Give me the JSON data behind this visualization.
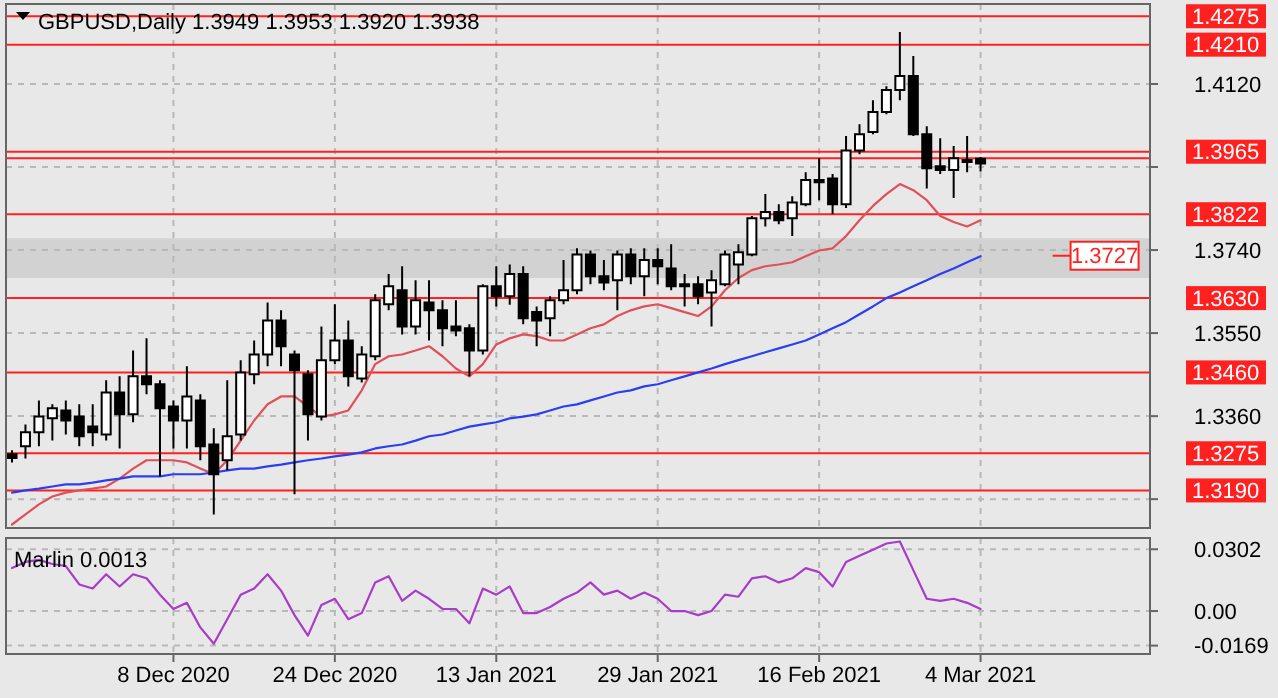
{
  "chart_data": [
    {
      "type": "candlestick",
      "title": "GBPUSD,Daily 1.3949 1.3953 1.3920 1.3938",
      "categories": [
        null,
        null,
        null,
        null,
        null,
        null,
        null,
        null,
        null,
        null,
        null,
        null,
        null,
        null,
        null,
        null,
        null,
        null,
        null,
        null,
        null,
        null,
        null,
        null,
        null,
        null,
        null,
        null,
        null,
        null,
        null,
        null,
        null,
        null,
        null,
        null,
        null,
        null,
        null,
        null,
        null,
        null,
        null,
        null,
        null,
        null,
        null,
        null,
        null,
        null,
        null,
        null,
        null,
        null,
        null,
        null,
        null,
        null,
        null,
        null,
        null,
        null,
        null,
        null,
        null,
        null,
        null,
        null,
        null,
        null,
        null,
        null,
        null,
        null,
        null,
        null,
        null,
        null,
        null,
        null,
        null,
        null,
        null,
        null,
        null
      ],
      "ohlc": [
        [
          1.3273,
          1.3282,
          1.3254,
          1.3264
        ],
        [
          1.3291,
          1.3341,
          1.3263,
          1.3323
        ],
        [
          1.3323,
          1.3396,
          1.3291,
          1.3359
        ],
        [
          1.3355,
          1.3387,
          1.3304,
          1.3378
        ],
        [
          1.3373,
          1.3396,
          1.3318,
          1.335
        ],
        [
          1.3359,
          1.3387,
          1.3291,
          1.3314
        ],
        [
          1.3336,
          1.3387,
          1.3291,
          1.3323
        ],
        [
          1.3318,
          1.3442,
          1.3304,
          1.3414
        ],
        [
          1.3414,
          1.3451,
          1.3286,
          1.3364
        ],
        [
          1.3364,
          1.351,
          1.3346,
          1.3451
        ],
        [
          1.3451,
          1.3538,
          1.341,
          1.3433
        ],
        [
          1.3433,
          1.3442,
          1.3222,
          1.3378
        ],
        [
          1.3382,
          1.3396,
          1.3286,
          1.335
        ],
        [
          1.335,
          1.3474,
          1.3286,
          1.3405
        ],
        [
          1.3396,
          1.341,
          1.3259,
          1.3291
        ],
        [
          1.3295,
          1.3332,
          1.3135,
          1.3227
        ],
        [
          1.3259,
          1.3442,
          1.3236,
          1.3314
        ],
        [
          1.3318,
          1.3488,
          1.3304,
          1.346
        ],
        [
          1.3456,
          1.3533,
          1.3433,
          1.3501
        ],
        [
          1.3501,
          1.362,
          1.3474,
          1.3579
        ],
        [
          1.3579,
          1.3602,
          1.3474,
          1.352
        ],
        [
          1.3501,
          1.351,
          1.3181,
          1.3465
        ],
        [
          1.3456,
          1.3465,
          1.3304,
          1.3364
        ],
        [
          1.3359,
          1.3565,
          1.335,
          1.3488
        ],
        [
          1.3488,
          1.3616,
          1.3479,
          1.3533
        ],
        [
          1.3533,
          1.3579,
          1.3428,
          1.3451
        ],
        [
          1.3446,
          1.352,
          1.3437,
          1.3501
        ],
        [
          1.3497,
          1.3639,
          1.3488,
          1.3625
        ],
        [
          1.3616,
          1.3685,
          1.3602,
          1.3657
        ],
        [
          1.3648,
          1.3703,
          1.3547,
          1.3565
        ],
        [
          1.3565,
          1.3671,
          1.3547,
          1.3625
        ],
        [
          1.362,
          1.3671,
          1.3533,
          1.3602
        ],
        [
          1.3602,
          1.3625,
          1.352,
          1.3561
        ],
        [
          1.3565,
          1.3625,
          1.3543,
          1.3556
        ],
        [
          1.3561,
          1.357,
          1.3451,
          1.351
        ],
        [
          1.351,
          1.3662,
          1.3501,
          1.3657
        ],
        [
          1.3657,
          1.3703,
          1.3611,
          1.3634
        ],
        [
          1.3634,
          1.3707,
          1.3615,
          1.3685
        ],
        [
          1.3685,
          1.3703,
          1.357,
          1.3584
        ],
        [
          1.3598,
          1.3611,
          1.352,
          1.3579
        ],
        [
          1.3584,
          1.3634,
          1.3543,
          1.3625
        ],
        [
          1.3625,
          1.3717,
          1.3616,
          1.3648
        ],
        [
          1.3648,
          1.3744,
          1.3639,
          1.373
        ],
        [
          1.373,
          1.3739,
          1.3662,
          1.368
        ],
        [
          1.368,
          1.3717,
          1.3648,
          1.3666
        ],
        [
          1.3671,
          1.3739,
          1.3602,
          1.373
        ],
        [
          1.373,
          1.3744,
          1.3662,
          1.368
        ],
        [
          1.368,
          1.3744,
          1.3634,
          1.3717
        ],
        [
          1.3717,
          1.3744,
          1.3662,
          1.3703
        ],
        [
          1.3698,
          1.3753,
          1.3648,
          1.3657
        ],
        [
          1.3657,
          1.3685,
          1.3611,
          1.3662
        ],
        [
          1.3662,
          1.368,
          1.3616,
          1.3634
        ],
        [
          1.3643,
          1.3694,
          1.3565,
          1.3671
        ],
        [
          1.3662,
          1.3739,
          1.3657,
          1.373
        ],
        [
          1.3707,
          1.3753,
          1.3662,
          1.3735
        ],
        [
          1.373,
          1.3818,
          1.3726,
          1.3813
        ],
        [
          1.3813,
          1.3868,
          1.3794,
          1.3827
        ],
        [
          1.3827,
          1.3845,
          1.3799,
          1.3808
        ],
        [
          1.3813,
          1.3863,
          1.3772,
          1.3849
        ],
        [
          1.3845,
          1.3918,
          1.384,
          1.39
        ],
        [
          1.39,
          1.395,
          1.3854,
          1.3895
        ],
        [
          1.3904,
          1.3914,
          1.3822,
          1.3845
        ],
        [
          1.3845,
          1.4001,
          1.3836,
          1.3968
        ],
        [
          1.3968,
          1.4028,
          1.3959,
          1.4005
        ],
        [
          1.401,
          1.4083,
          1.4005,
          1.4056
        ],
        [
          1.4056,
          1.4115,
          1.4051,
          1.4106
        ],
        [
          1.4106,
          1.4239,
          1.4083,
          1.4138
        ],
        [
          1.4138,
          1.4184,
          1.4001,
          1.4005
        ],
        [
          1.4005,
          1.4023,
          1.3881,
          1.3927
        ],
        [
          1.3932,
          1.3996,
          1.3914,
          1.3923
        ],
        [
          1.3923,
          1.3978,
          1.3859,
          1.395
        ],
        [
          1.3946,
          1.4001,
          1.3918,
          1.3946
        ],
        [
          1.3949,
          1.3953,
          1.392,
          1.3938
        ],
        null,
        null,
        null,
        null,
        null,
        null,
        null,
        null,
        null,
        null,
        null,
        null
      ],
      "series": [
        {
          "type": "line",
          "color": "#e0505a",
          "values": [
            1.3112,
            1.3135,
            1.3158,
            1.3176,
            1.3185,
            1.319,
            1.3194,
            1.3199,
            1.3217,
            1.324,
            1.3259,
            1.3259,
            1.3259,
            1.3254,
            1.324,
            1.3227,
            1.3259,
            1.3304,
            1.335,
            1.3387,
            1.3405,
            1.3405,
            1.3382,
            1.3359,
            1.3364,
            1.3373,
            1.3419,
            1.3479,
            1.3497,
            1.3501,
            1.351,
            1.352,
            1.3497,
            1.3469,
            1.3451,
            1.3479,
            1.3524,
            1.3538,
            1.3547,
            1.3543,
            1.3533,
            1.3533,
            1.3547,
            1.3561,
            1.357,
            1.3589,
            1.3602,
            1.3611,
            1.3616,
            1.3607,
            1.3598,
            1.3589,
            1.3611,
            1.3648,
            1.3676,
            1.3694,
            1.3703,
            1.3707,
            1.3712,
            1.3726,
            1.3739,
            1.3744,
            1.3772,
            1.3808,
            1.3841,
            1.3868,
            1.3891,
            1.3877,
            1.3854,
            1.3818,
            1.3804,
            1.3794,
            1.3808,
            null,
            null,
            null,
            null,
            null,
            null,
            null,
            null,
            null,
            null,
            null,
            null
          ]
        },
        {
          "type": "line",
          "color": "#2a3ff0",
          "values": [
            1.3185,
            1.319,
            1.3194,
            1.3199,
            1.3204,
            1.3204,
            1.3208,
            1.3213,
            1.3217,
            1.3222,
            1.3222,
            1.3222,
            1.3227,
            1.3227,
            1.3227,
            1.3231,
            1.3236,
            1.324,
            1.324,
            1.3245,
            1.3249,
            1.3254,
            1.3259,
            1.3263,
            1.3268,
            1.3272,
            1.3277,
            1.3286,
            1.3291,
            1.3295,
            1.3304,
            1.3314,
            1.3318,
            1.3327,
            1.3336,
            1.3341,
            1.3346,
            1.3355,
            1.3359,
            1.3364,
            1.3373,
            1.3382,
            1.3387,
            1.3396,
            1.3405,
            1.3414,
            1.3419,
            1.3428,
            1.3433,
            1.3442,
            1.3451,
            1.346,
            1.3469,
            1.3479,
            1.3488,
            1.3497,
            1.3506,
            1.3515,
            1.3524,
            1.3533,
            1.3547,
            1.3561,
            1.3575,
            1.3593,
            1.3611,
            1.363,
            1.3643,
            1.3657,
            1.3671,
            1.3685,
            1.3698,
            1.3712,
            1.3726,
            null,
            null,
            null,
            null,
            null,
            null,
            null,
            null,
            null,
            null,
            null,
            null
          ]
        }
      ],
      "ylim": [
        1.3104,
        1.4303
      ],
      "yticks": [
        {
          "value": 1.412,
          "label": "1.4120"
        },
        {
          "value": 1.393,
          "label": null
        },
        {
          "value": 1.374,
          "label": "1.3740"
        },
        {
          "value": 1.355,
          "label": "1.3550"
        },
        {
          "value": 1.336,
          "label": "1.3360"
        },
        {
          "value": 1.317,
          "label": null
        }
      ],
      "grid": true,
      "tick_labels": "y",
      "ref_lines": [
        {
          "axis": "y",
          "value": 1.4275,
          "label": "1.4275",
          "color": "#ff2020"
        },
        {
          "axis": "y",
          "value": 1.421,
          "label": "1.4210",
          "color": "#ff2020"
        },
        {
          "axis": "y",
          "value": 1.3965,
          "label": "1.3965",
          "color": "#ff2020"
        },
        {
          "axis": "y",
          "value": 1.395,
          "label": null,
          "color": "#ff2020"
        },
        {
          "axis": "y",
          "value": 1.3822,
          "label": "1.3822",
          "color": "#ff2020"
        },
        {
          "axis": "y",
          "value": 1.363,
          "label": "1.3630",
          "color": "#ff2020"
        },
        {
          "axis": "y",
          "value": 1.346,
          "label": "1.3460",
          "color": "#ff2020"
        },
        {
          "axis": "y",
          "value": 1.3275,
          "label": "1.3275",
          "color": "#ff2020"
        },
        {
          "axis": "y",
          "value": 1.319,
          "label": "1.3190",
          "color": "#ff2020"
        }
      ],
      "bands": [
        {
          "axis": "y",
          "from": 1.3676,
          "to": 1.3767,
          "color": "#d2d2d2"
        }
      ],
      "annotations": [
        {
          "text": "1.3727",
          "y": 1.3727
        }
      ]
    },
    {
      "type": "line",
      "title": "Marlin 0.0013",
      "categories": [
        null,
        null,
        null,
        null,
        null,
        null,
        null,
        null,
        null,
        null,
        null,
        null,
        "8 Dec 2020",
        null,
        null,
        null,
        null,
        null,
        null,
        null,
        null,
        null,
        null,
        null,
        "24 Dec 2020",
        null,
        null,
        null,
        null,
        null,
        null,
        null,
        null,
        null,
        null,
        null,
        "13 Jan 2021",
        null,
        null,
        null,
        null,
        null,
        null,
        null,
        null,
        null,
        null,
        null,
        "29 Jan 2021",
        null,
        null,
        null,
        null,
        null,
        null,
        null,
        null,
        null,
        null,
        null,
        "16 Feb 2021",
        null,
        null,
        null,
        null,
        null,
        null,
        null,
        null,
        null,
        null,
        null,
        "4 Mar 2021",
        null,
        null,
        null,
        null,
        null,
        null,
        null,
        null,
        null,
        null,
        null,
        null
      ],
      "series": [
        {
          "color": "#a83cc8",
          "values": [
            0.021,
            0.024,
            0.025,
            0.023,
            0.022,
            0.013,
            0.011,
            0.018,
            0.012,
            0.018,
            0.016,
            0.008,
            0.001,
            0.004,
            -0.008,
            -0.016,
            -0.004,
            0.008,
            0.011,
            0.018,
            0.01,
            -0.002,
            -0.012,
            0.003,
            0.006,
            -0.004,
            -0.001,
            0.014,
            0.017,
            0.005,
            0.01,
            0.006,
            0.001,
            0.001,
            -0.006,
            0.011,
            0.008,
            0.012,
            -0.001,
            -0.001,
            0.002,
            0.006,
            0.009,
            0.014,
            0.008,
            0.01,
            0.006,
            0.009,
            0.006,
            0.0,
            0.0,
            -0.002,
            0.0,
            0.008,
            0.007,
            0.016,
            0.017,
            0.014,
            0.016,
            0.021,
            0.019,
            0.012,
            0.024,
            0.027,
            0.03,
            0.033,
            0.034,
            0.02,
            0.006,
            0.005,
            0.006,
            0.004,
            0.001,
            null,
            null,
            null,
            null,
            null,
            null,
            null,
            null,
            null,
            null,
            null,
            null
          ]
        }
      ],
      "ylim": [
        -0.021,
        0.0357
      ],
      "yticks": [
        0.0302,
        {
          "value": 0,
          "label": "0.00"
        },
        -0.0169
      ],
      "grid": true
    }
  ]
}
